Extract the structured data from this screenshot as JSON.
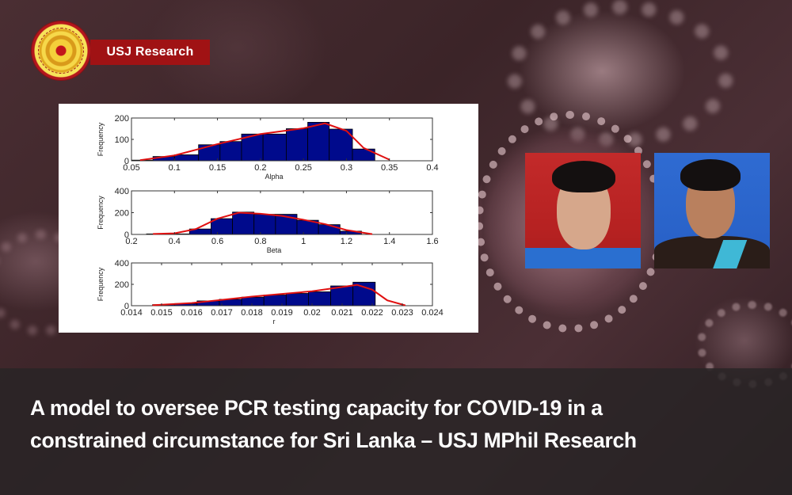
{
  "brand": {
    "logo_icon": "university-of-sri-jayewardenepura-emblem",
    "label": "USJ Research",
    "accent_color": "#a01214"
  },
  "headline": {
    "line1": "A model to oversee PCR testing capacity for COVID-19 in a",
    "line2": "constrained circumstance for Sri Lanka – USJ MPhil Research"
  },
  "photos": [
    {
      "description": "portrait of male researcher, red background",
      "background_color": "#c32a2a"
    },
    {
      "description": "portrait of female researcher, blue background",
      "background_color": "#2f6bd2"
    }
  ],
  "chart_data": [
    {
      "type": "bar",
      "subtype": "histogram-with-density",
      "title": "",
      "xlabel": "Alpha",
      "ylabel": "Frequency",
      "xlim": [
        0.05,
        0.4
      ],
      "ylim": [
        0,
        200
      ],
      "xticks": [
        "0.05",
        "0.1",
        "0.15",
        "0.2",
        "0.25",
        "0.3",
        "0.35",
        "0.4"
      ],
      "yticks": [
        "0",
        "100",
        "200"
      ],
      "bin_edges": [
        0.05,
        0.075,
        0.1,
        0.128,
        0.153,
        0.178,
        0.203,
        0.23,
        0.255,
        0.28,
        0.307,
        0.333
      ],
      "values": [
        3,
        20,
        28,
        75,
        90,
        125,
        125,
        150,
        180,
        148,
        55
      ],
      "curve_x": [
        0.06,
        0.1,
        0.15,
        0.2,
        0.25,
        0.275,
        0.3,
        0.32,
        0.35
      ],
      "curve_y": [
        3,
        25,
        78,
        125,
        152,
        175,
        140,
        60,
        5
      ],
      "bar_color": "#000a8c",
      "curve_color": "#e01010"
    },
    {
      "type": "bar",
      "subtype": "histogram-with-density",
      "title": "",
      "xlabel": "Beta",
      "ylabel": "Frequency",
      "xlim": [
        0.2,
        1.6
      ],
      "ylim": [
        0,
        400
      ],
      "xticks": [
        "0.2",
        "0.4",
        "0.6",
        "0.8",
        "1",
        "1.2",
        "1.4",
        "1.6"
      ],
      "yticks": [
        "0",
        "200",
        "400"
      ],
      "bin_edges": [
        0.27,
        0.37,
        0.47,
        0.57,
        0.67,
        0.77,
        0.87,
        0.97,
        1.07,
        1.17,
        1.27
      ],
      "values": [
        5,
        5,
        50,
        145,
        205,
        185,
        185,
        130,
        90,
        30
      ],
      "curve_x": [
        0.3,
        0.4,
        0.5,
        0.6,
        0.7,
        0.8,
        0.9,
        1.0,
        1.1,
        1.2,
        1.32
      ],
      "curve_y": [
        5,
        10,
        50,
        145,
        200,
        190,
        170,
        135,
        95,
        40,
        3
      ],
      "bar_color": "#000a8c",
      "curve_color": "#e01010"
    },
    {
      "type": "bar",
      "subtype": "histogram-with-density",
      "title": "",
      "xlabel": "r",
      "ylabel": "Frequency",
      "xlim": [
        0.014,
        0.024
      ],
      "ylim": [
        0,
        400
      ],
      "xticks": [
        "0.014",
        "0.015",
        "0.016",
        "0.017",
        "0.018",
        "0.019",
        "0.02",
        "0.021",
        "0.022",
        "0.023",
        "0.024"
      ],
      "yticks": [
        "0",
        "200",
        "400"
      ],
      "bin_edges": [
        0.0147,
        0.01544,
        0.01618,
        0.01692,
        0.01766,
        0.0184,
        0.01914,
        0.01988,
        0.02062,
        0.02136,
        0.0221
      ],
      "values": [
        10,
        20,
        45,
        60,
        80,
        100,
        115,
        130,
        185,
        220
      ],
      "curve_x": [
        0.0147,
        0.016,
        0.017,
        0.018,
        0.019,
        0.02,
        0.021,
        0.0215,
        0.022,
        0.0225,
        0.0231
      ],
      "curve_y": [
        5,
        25,
        55,
        85,
        110,
        135,
        175,
        195,
        150,
        50,
        3
      ],
      "bar_color": "#000a8c",
      "curve_color": "#e01010"
    }
  ]
}
